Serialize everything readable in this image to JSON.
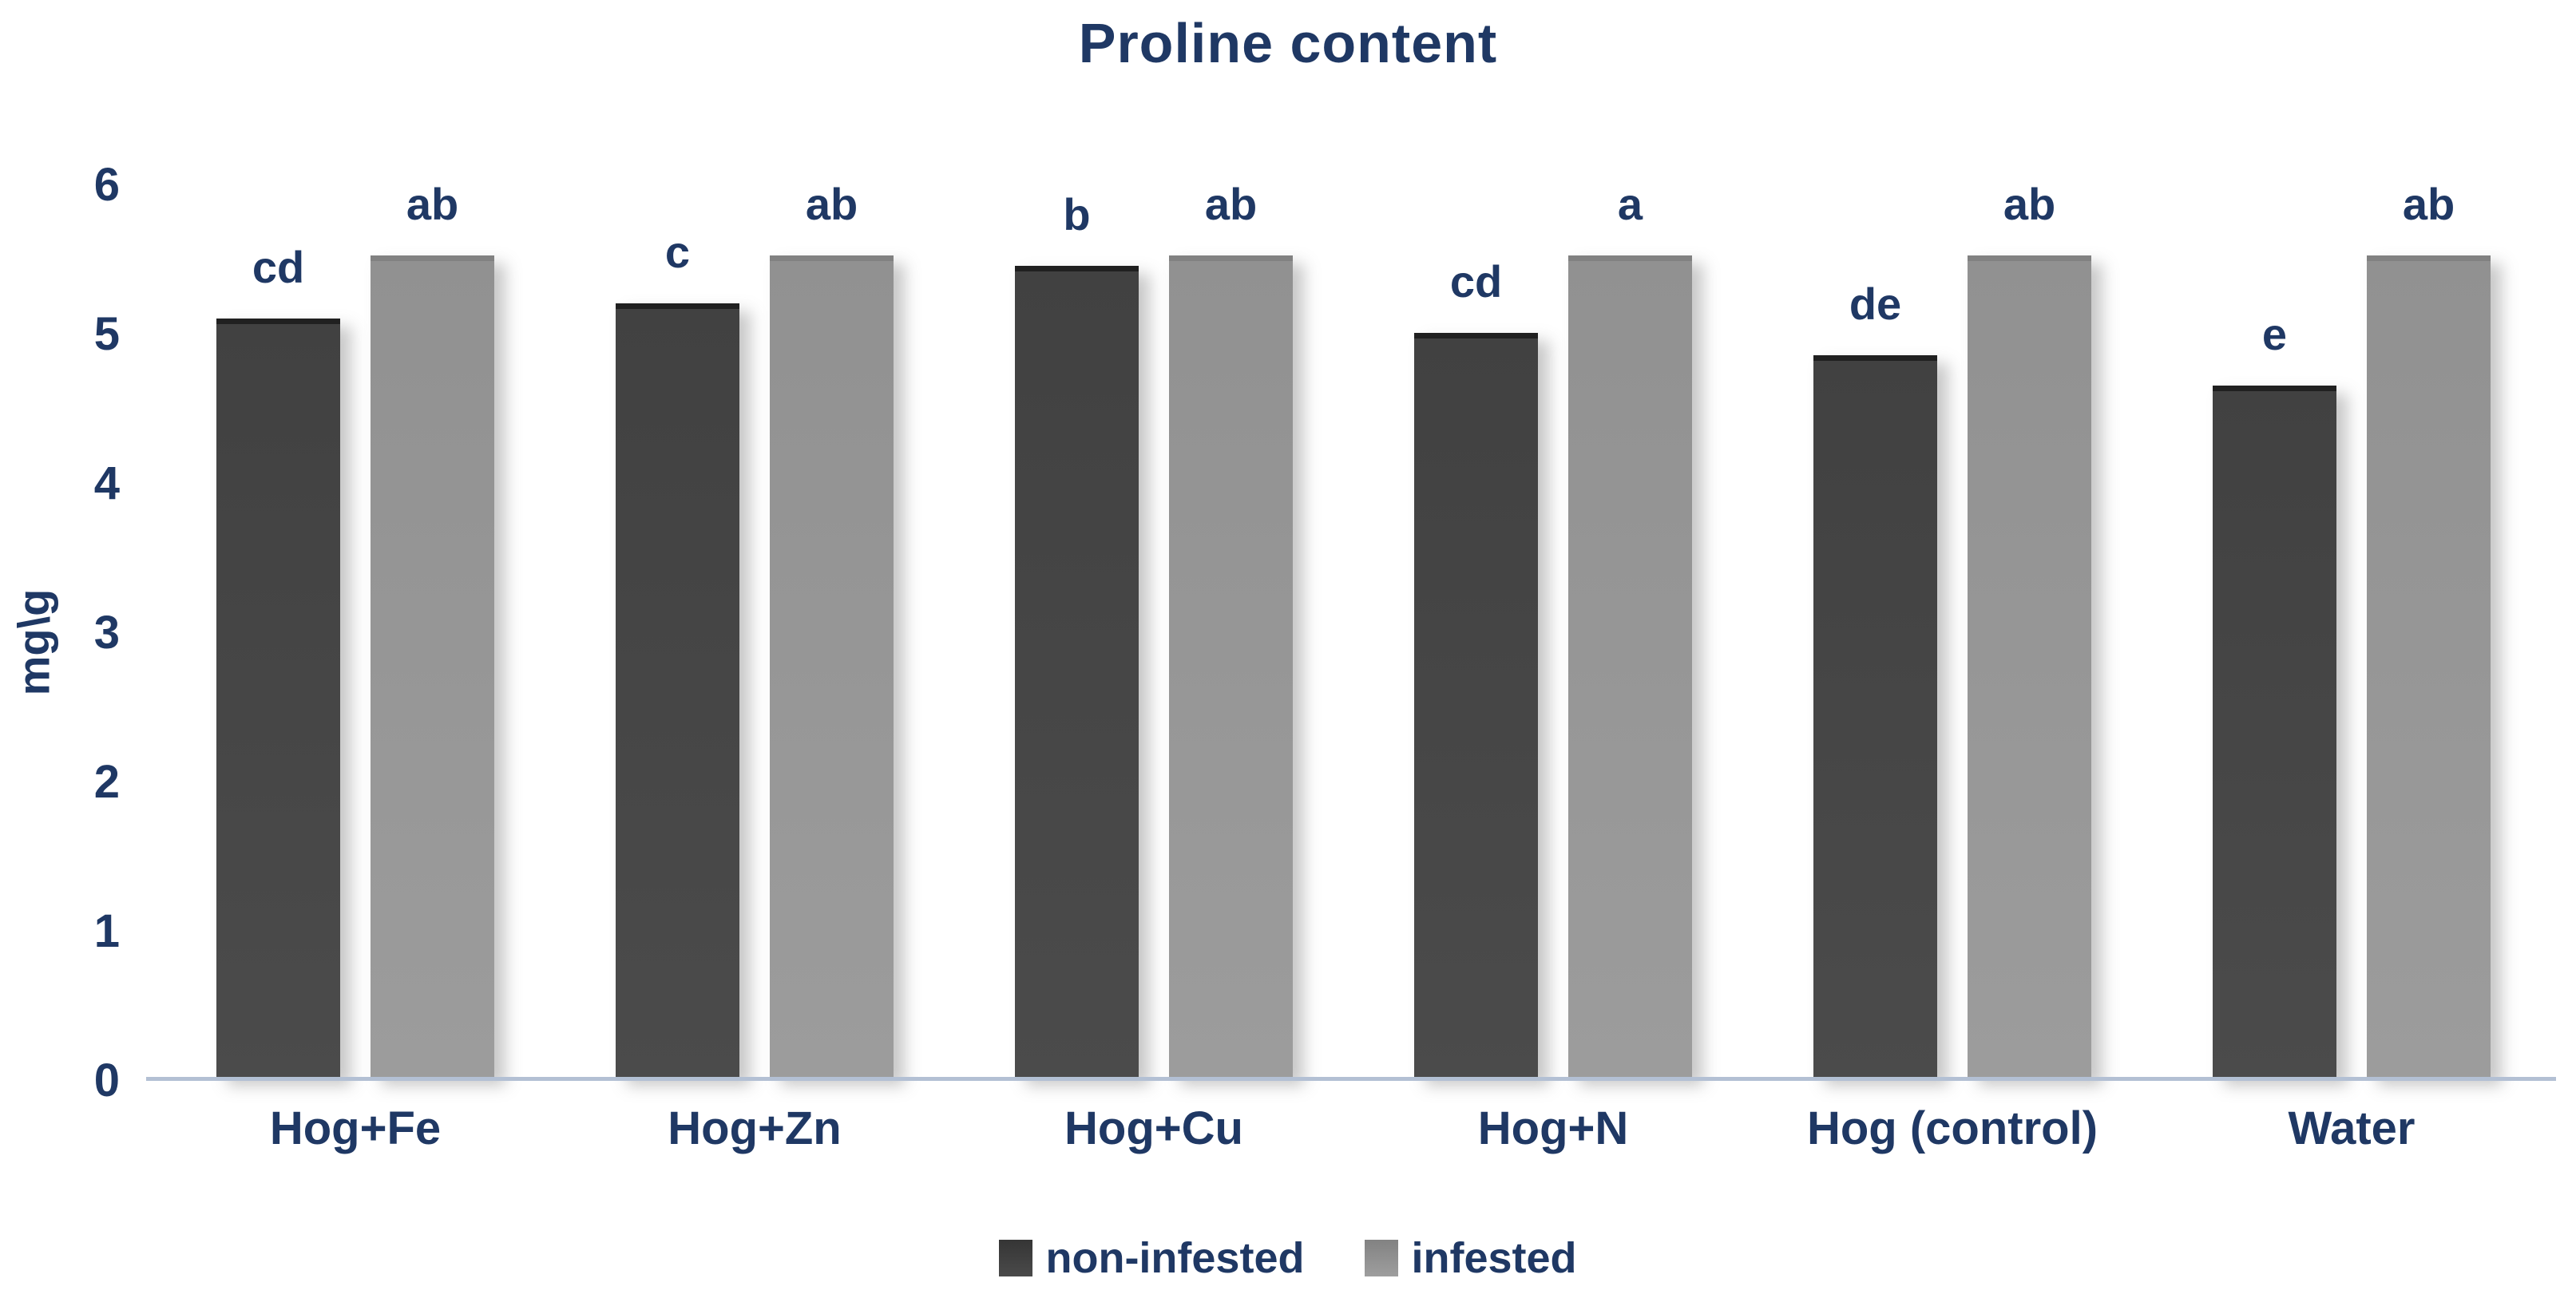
{
  "chart_data": {
    "type": "bar",
    "title": "Proline content",
    "xlabel": "",
    "ylabel": "mg\\g",
    "ylim": [
      0,
      6
    ],
    "yticks": [
      0,
      1,
      2,
      3,
      4,
      5,
      6
    ],
    "grid": false,
    "legend_position": "bottom",
    "categories": [
      "Hog+Fe",
      "Hog+Zn",
      "Hog+Cu",
      "Hog+N",
      "Hog (control)",
      "Water"
    ],
    "series": [
      {
        "name": "non-infested",
        "color": "#474747",
        "values": [
          5.05,
          5.15,
          5.4,
          4.95,
          4.8,
          4.6
        ],
        "sig_letters": [
          "cd",
          "c",
          "b",
          "cd",
          "de",
          "e"
        ]
      },
      {
        "name": "infested",
        "color": "#969696",
        "values": [
          5.5,
          5.5,
          5.65,
          5.7,
          5.6,
          5.65
        ],
        "sig_letters": [
          "ab",
          "ab",
          "ab",
          "a",
          "ab",
          "ab"
        ]
      }
    ]
  },
  "colors": {
    "text": "#1f3864",
    "axis_line": "#b3c0d4",
    "background": "#ffffff"
  }
}
